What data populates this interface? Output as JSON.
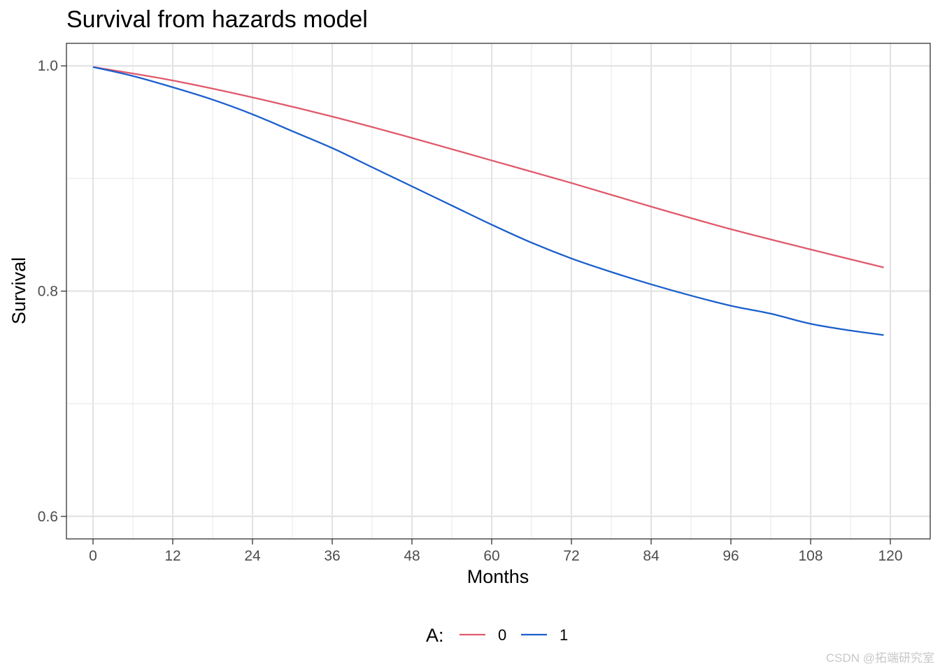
{
  "chart_data": {
    "type": "line",
    "title": "Survival from hazards model",
    "xlabel": "Months",
    "ylabel": "Survival",
    "xlim": [
      -4,
      126
    ],
    "ylim": [
      0.58,
      1.02
    ],
    "x_ticks": [
      0,
      12,
      24,
      36,
      48,
      60,
      72,
      84,
      96,
      108,
      120
    ],
    "x_tick_labels": [
      "0",
      "12",
      "24",
      "36",
      "48",
      "60",
      "72",
      "84",
      "96",
      "108",
      "120"
    ],
    "y_ticks": [
      0.6,
      0.8,
      1.0
    ],
    "y_tick_labels": [
      "0.6",
      "0.8",
      "1.0"
    ],
    "grid": true,
    "legend": {
      "title": "A:",
      "position": "bottom"
    },
    "series": [
      {
        "name": "0",
        "color": "#e05a6b",
        "x": [
          0,
          12,
          24,
          36,
          48,
          60,
          72,
          84,
          96,
          108,
          119
        ],
        "y": [
          0.999,
          0.987,
          0.972,
          0.955,
          0.936,
          0.916,
          0.896,
          0.875,
          0.855,
          0.837,
          0.821
        ]
      },
      {
        "name": "1",
        "color": "#1a5fcc",
        "x": [
          0,
          6,
          12,
          18,
          24,
          30,
          36,
          42,
          48,
          54,
          60,
          66,
          72,
          78,
          84,
          90,
          96,
          102,
          108,
          114,
          119
        ],
        "y": [
          0.999,
          0.991,
          0.981,
          0.97,
          0.957,
          0.942,
          0.927,
          0.91,
          0.893,
          0.876,
          0.859,
          0.843,
          0.829,
          0.817,
          0.806,
          0.796,
          0.787,
          0.78,
          0.771,
          0.765,
          0.761
        ]
      }
    ]
  },
  "watermark": "CSDN @拓端研究室"
}
